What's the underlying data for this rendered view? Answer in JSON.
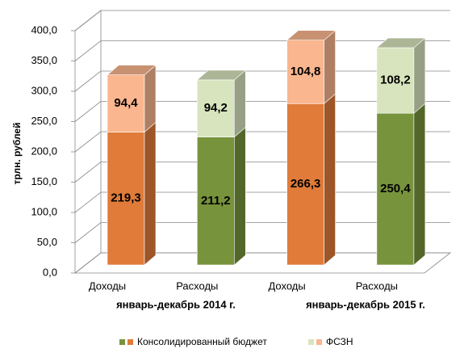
{
  "chart_data": {
    "type": "bar3d_stacked",
    "ylabel": "трлн. рублей",
    "categories": [
      "Доходы",
      "Расходы",
      "Доходы",
      "Расходы"
    ],
    "groups": [
      "январь-декабрь 2014 г.",
      "январь-декабрь 2015 г."
    ],
    "series": [
      {
        "name": "Консолидированный бюджет",
        "colors": [
          "#e07b39",
          "#77933c",
          "#e07b39",
          "#77933c"
        ],
        "values": [
          219.3,
          211.2,
          266.3,
          250.4
        ],
        "value_labels": [
          "219,3",
          "211,2",
          "266,3",
          "250,4"
        ]
      },
      {
        "name": "ФСЗН",
        "colors": [
          "#fab68f",
          "#d7e4bd",
          "#fab68f",
          "#d7e4bd"
        ],
        "values": [
          94.4,
          94.2,
          104.8,
          108.2
        ],
        "value_labels": [
          "94,4",
          "94,2",
          "104,8",
          "108,2"
        ]
      }
    ],
    "ylim": [
      0,
      400
    ],
    "yticks": [
      {
        "value": 0,
        "label": "0,0"
      },
      {
        "value": 50,
        "label": "50,0"
      },
      {
        "value": 100,
        "label": "100,0"
      },
      {
        "value": 150,
        "label": "150,0"
      },
      {
        "value": 200,
        "label": "200,0"
      },
      {
        "value": 250,
        "label": "250,0"
      },
      {
        "value": 300,
        "label": "300,0"
      },
      {
        "value": 350,
        "label": "350,0"
      },
      {
        "value": 400,
        "label": "400,0"
      }
    ],
    "grid": true
  }
}
